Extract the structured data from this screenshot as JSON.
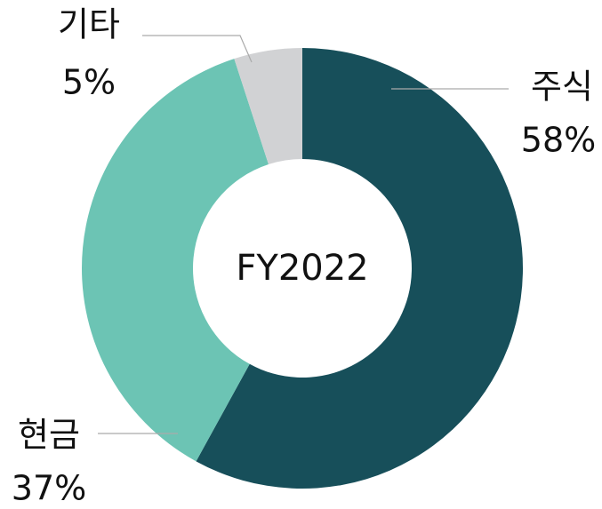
{
  "chart_data": {
    "type": "donut",
    "categories": [
      "주식",
      "현금",
      "기타"
    ],
    "values": [
      58,
      37,
      5
    ],
    "value_labels": [
      "58%",
      "37%",
      "5%"
    ],
    "colors": [
      "#174f5a",
      "#6cc4b4",
      "#d1d2d4"
    ],
    "center_label": "FY2022"
  }
}
